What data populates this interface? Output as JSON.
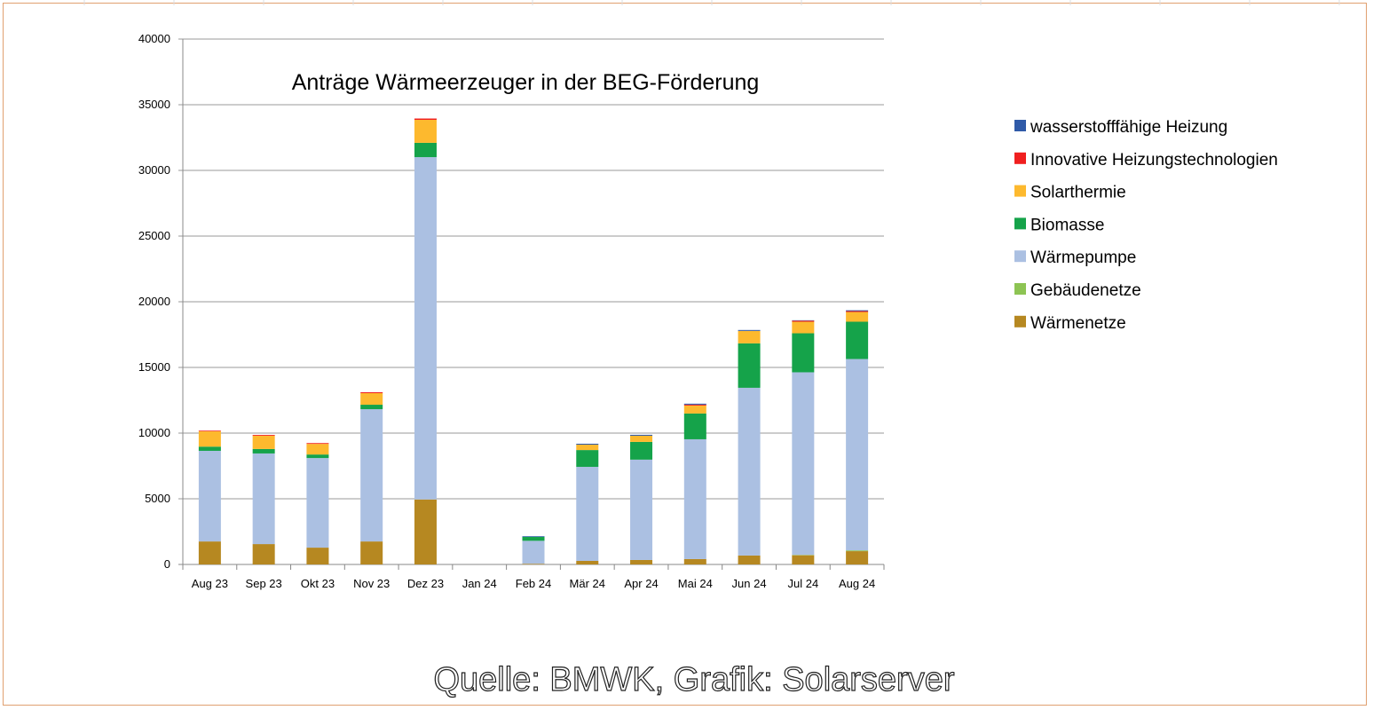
{
  "chart_data": {
    "type": "bar",
    "stacked": true,
    "title": "Anträge Wärmeerzeuger in der BEG-Förderung",
    "xlabel": "",
    "ylabel": "",
    "ylim": [
      0,
      40000
    ],
    "yticks": [
      0,
      5000,
      10000,
      15000,
      20000,
      25000,
      30000,
      35000,
      40000
    ],
    "grid": true,
    "legend_position": "right",
    "categories": [
      "Aug 23",
      "Sep 23",
      "Okt 23",
      "Nov 23",
      "Dez 23",
      "Jan 24",
      "Feb 24",
      "Mär 24",
      "Apr 24",
      "Mai 24",
      "Jun 24",
      "Jul 24",
      "Aug 24"
    ],
    "series": [
      {
        "name": "Wärmenetze",
        "color": "#b68821",
        "values": [
          1750,
          1550,
          1280,
          1750,
          4950,
          0,
          50,
          270,
          340,
          410,
          680,
          700,
          1010
        ]
      },
      {
        "name": "Gebäudenetze",
        "color": "#8dc453",
        "values": [
          0,
          0,
          0,
          0,
          0,
          0,
          0,
          0,
          0,
          0,
          0,
          30,
          60
        ]
      },
      {
        "name": "Wärmepumpe",
        "color": "#abc0e2",
        "values": [
          6900,
          6900,
          6820,
          10070,
          26060,
          0,
          1750,
          7160,
          7640,
          9120,
          12770,
          13900,
          14570
        ]
      },
      {
        "name": "Biomasse",
        "color": "#15a34a",
        "values": [
          320,
          340,
          270,
          340,
          1090,
          0,
          300,
          1280,
          1350,
          1960,
          3380,
          2970,
          2840
        ]
      },
      {
        "name": "Solarthermie",
        "color": "#fdb92e",
        "values": [
          1170,
          1010,
          810,
          880,
          1750,
          0,
          0,
          410,
          470,
          610,
          950,
          880,
          740
        ]
      },
      {
        "name": "Innovative Heizungstechnologien",
        "color": "#f01f1f",
        "values": [
          50,
          60,
          60,
          70,
          100,
          0,
          0,
          0,
          0,
          70,
          0,
          80,
          70
        ]
      },
      {
        "name": "wasserstofffähige Heizung",
        "color": "#2f5aa8",
        "values": [
          0,
          0,
          0,
          0,
          0,
          0,
          50,
          70,
          70,
          70,
          70,
          30,
          60
        ]
      }
    ]
  },
  "credit": "Quelle: BMWK, Grafik: Solarserver"
}
